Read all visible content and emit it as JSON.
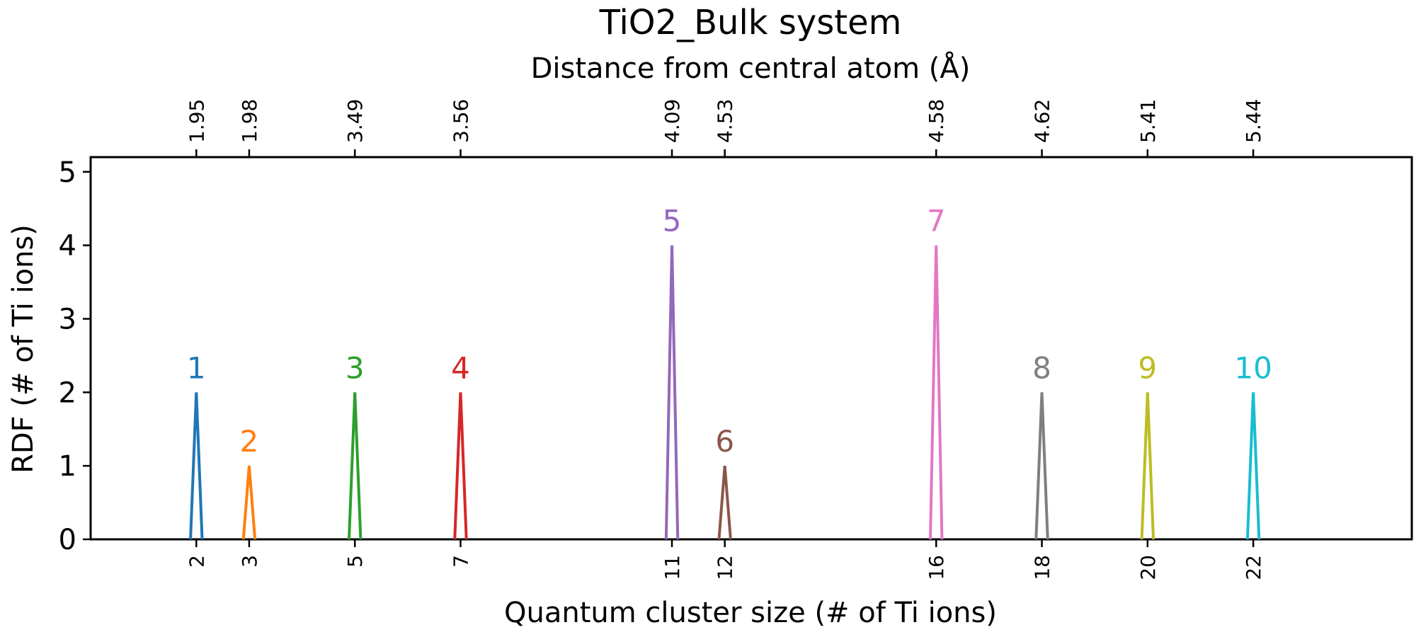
{
  "chart_data": {
    "type": "line",
    "title": "TiO2_Bulk system",
    "xlabel": "Quantum cluster size (# of Ti ions)",
    "ylabel": "RDF (# of Ti ions)",
    "top_xlabel": "Distance from central atom (Å)",
    "xlim": [
      0,
      25
    ],
    "ylim": [
      0,
      5.2
    ],
    "yticks": [
      "0",
      "1",
      "2",
      "3",
      "4",
      "5"
    ],
    "peaks": [
      {
        "label": "1",
        "x": 2,
        "x_label": "2",
        "distance": "1.95",
        "height": 2,
        "color": "#1f77b4"
      },
      {
        "label": "2",
        "x": 3,
        "x_label": "3",
        "distance": "1.98",
        "height": 1,
        "color": "#ff7f0e"
      },
      {
        "label": "3",
        "x": 5,
        "x_label": "5",
        "distance": "3.49",
        "height": 2,
        "color": "#2ca02c"
      },
      {
        "label": "4",
        "x": 7,
        "x_label": "7",
        "distance": "3.56",
        "height": 2,
        "color": "#d62728"
      },
      {
        "label": "5",
        "x": 11,
        "x_label": "11",
        "distance": "4.09",
        "height": 4,
        "color": "#9467bd"
      },
      {
        "label": "6",
        "x": 12,
        "x_label": "12",
        "distance": "4.53",
        "height": 1,
        "color": "#8c564b"
      },
      {
        "label": "7",
        "x": 16,
        "x_label": "16",
        "distance": "4.58",
        "height": 4,
        "color": "#e377c2"
      },
      {
        "label": "8",
        "x": 18,
        "x_label": "18",
        "distance": "4.62",
        "height": 2,
        "color": "#7f7f7f"
      },
      {
        "label": "9",
        "x": 20,
        "x_label": "20",
        "distance": "5.41",
        "height": 2,
        "color": "#bcbd22"
      },
      {
        "label": "10",
        "x": 22,
        "x_label": "22",
        "distance": "5.44",
        "height": 2,
        "color": "#17becf"
      }
    ]
  }
}
